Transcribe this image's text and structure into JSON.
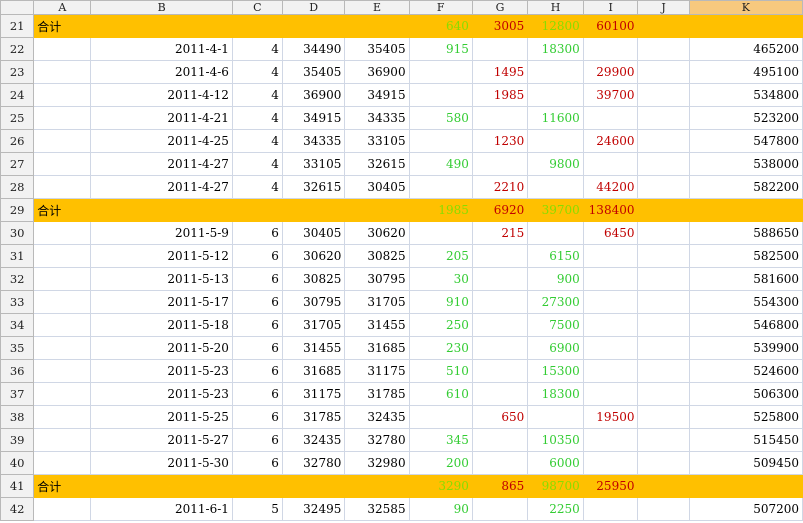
{
  "columns": [
    "A",
    "B",
    "C",
    "D",
    "E",
    "F",
    "G",
    "H",
    "I",
    "J",
    "K"
  ],
  "selected_column": "K",
  "rows": [
    {
      "n": "21",
      "total": true,
      "A": "合计",
      "F": "640",
      "G": "3005",
      "H": "12800",
      "I": "60100"
    },
    {
      "n": "22",
      "B": "2011-4-1",
      "C": "4",
      "D": "34490",
      "E": "35405",
      "F": "915",
      "H": "18300",
      "K": "465200"
    },
    {
      "n": "23",
      "B": "2011-4-6",
      "C": "4",
      "D": "35405",
      "E": "36900",
      "G": "1495",
      "I": "29900",
      "K": "495100"
    },
    {
      "n": "24",
      "B": "2011-4-12",
      "C": "4",
      "D": "36900",
      "E": "34915",
      "G": "1985",
      "I": "39700",
      "K": "534800"
    },
    {
      "n": "25",
      "B": "2011-4-21",
      "C": "4",
      "D": "34915",
      "E": "34335",
      "F": "580",
      "H": "11600",
      "K": "523200"
    },
    {
      "n": "26",
      "B": "2011-4-25",
      "C": "4",
      "D": "34335",
      "E": "33105",
      "G": "1230",
      "I": "24600",
      "K": "547800"
    },
    {
      "n": "27",
      "B": "2011-4-27",
      "C": "4",
      "D": "33105",
      "E": "32615",
      "F": "490",
      "H": "9800",
      "K": "538000"
    },
    {
      "n": "28",
      "B": "2011-4-27",
      "C": "4",
      "D": "32615",
      "E": "30405",
      "G": "2210",
      "I": "44200",
      "K": "582200"
    },
    {
      "n": "29",
      "total": true,
      "A": "合计",
      "F": "1985",
      "G": "6920",
      "H": "39700",
      "I": "138400"
    },
    {
      "n": "30",
      "B": "2011-5-9",
      "C": "6",
      "D": "30405",
      "E": "30620",
      "G": "215",
      "I": "6450",
      "K": "588650"
    },
    {
      "n": "31",
      "B": "2011-5-12",
      "C": "6",
      "D": "30620",
      "E": "30825",
      "F": "205",
      "H": "6150",
      "K": "582500"
    },
    {
      "n": "32",
      "B": "2011-5-13",
      "C": "6",
      "D": "30825",
      "E": "30795",
      "F": "30",
      "H": "900",
      "K": "581600"
    },
    {
      "n": "33",
      "B": "2011-5-17",
      "C": "6",
      "D": "30795",
      "E": "31705",
      "F": "910",
      "H": "27300",
      "K": "554300"
    },
    {
      "n": "34",
      "B": "2011-5-18",
      "C": "6",
      "D": "31705",
      "E": "31455",
      "F": "250",
      "H": "7500",
      "K": "546800"
    },
    {
      "n": "35",
      "B": "2011-5-20",
      "C": "6",
      "D": "31455",
      "E": "31685",
      "F": "230",
      "H": "6900",
      "K": "539900"
    },
    {
      "n": "36",
      "B": "2011-5-23",
      "C": "6",
      "D": "31685",
      "E": "31175",
      "F": "510",
      "H": "15300",
      "K": "524600"
    },
    {
      "n": "37",
      "B": "2011-5-23",
      "C": "6",
      "D": "31175",
      "E": "31785",
      "F": "610",
      "H": "18300",
      "K": "506300"
    },
    {
      "n": "38",
      "B": "2011-5-25",
      "C": "6",
      "D": "31785",
      "E": "32435",
      "G": "650",
      "I": "19500",
      "K": "525800"
    },
    {
      "n": "39",
      "B": "2011-5-27",
      "C": "6",
      "D": "32435",
      "E": "32780",
      "F": "345",
      "H": "10350",
      "K": "515450"
    },
    {
      "n": "40",
      "B": "2011-5-30",
      "C": "6",
      "D": "32780",
      "E": "32980",
      "F": "200",
      "H": "6000",
      "K": "509450"
    },
    {
      "n": "41",
      "total": true,
      "A": "合计",
      "F": "3290",
      "G": "865",
      "H": "98700",
      "I": "25950"
    },
    {
      "n": "42",
      "B": "2011-6-1",
      "C": "5",
      "D": "32495",
      "E": "32585",
      "F": "90",
      "H": "2250",
      "K": "507200"
    }
  ],
  "colors": {
    "total_fill": "#ffc000",
    "green_text": "#33cc33",
    "red_text": "#c00000",
    "header_fill": "#f2f2f2",
    "selected_header": "#f7c97e"
  }
}
